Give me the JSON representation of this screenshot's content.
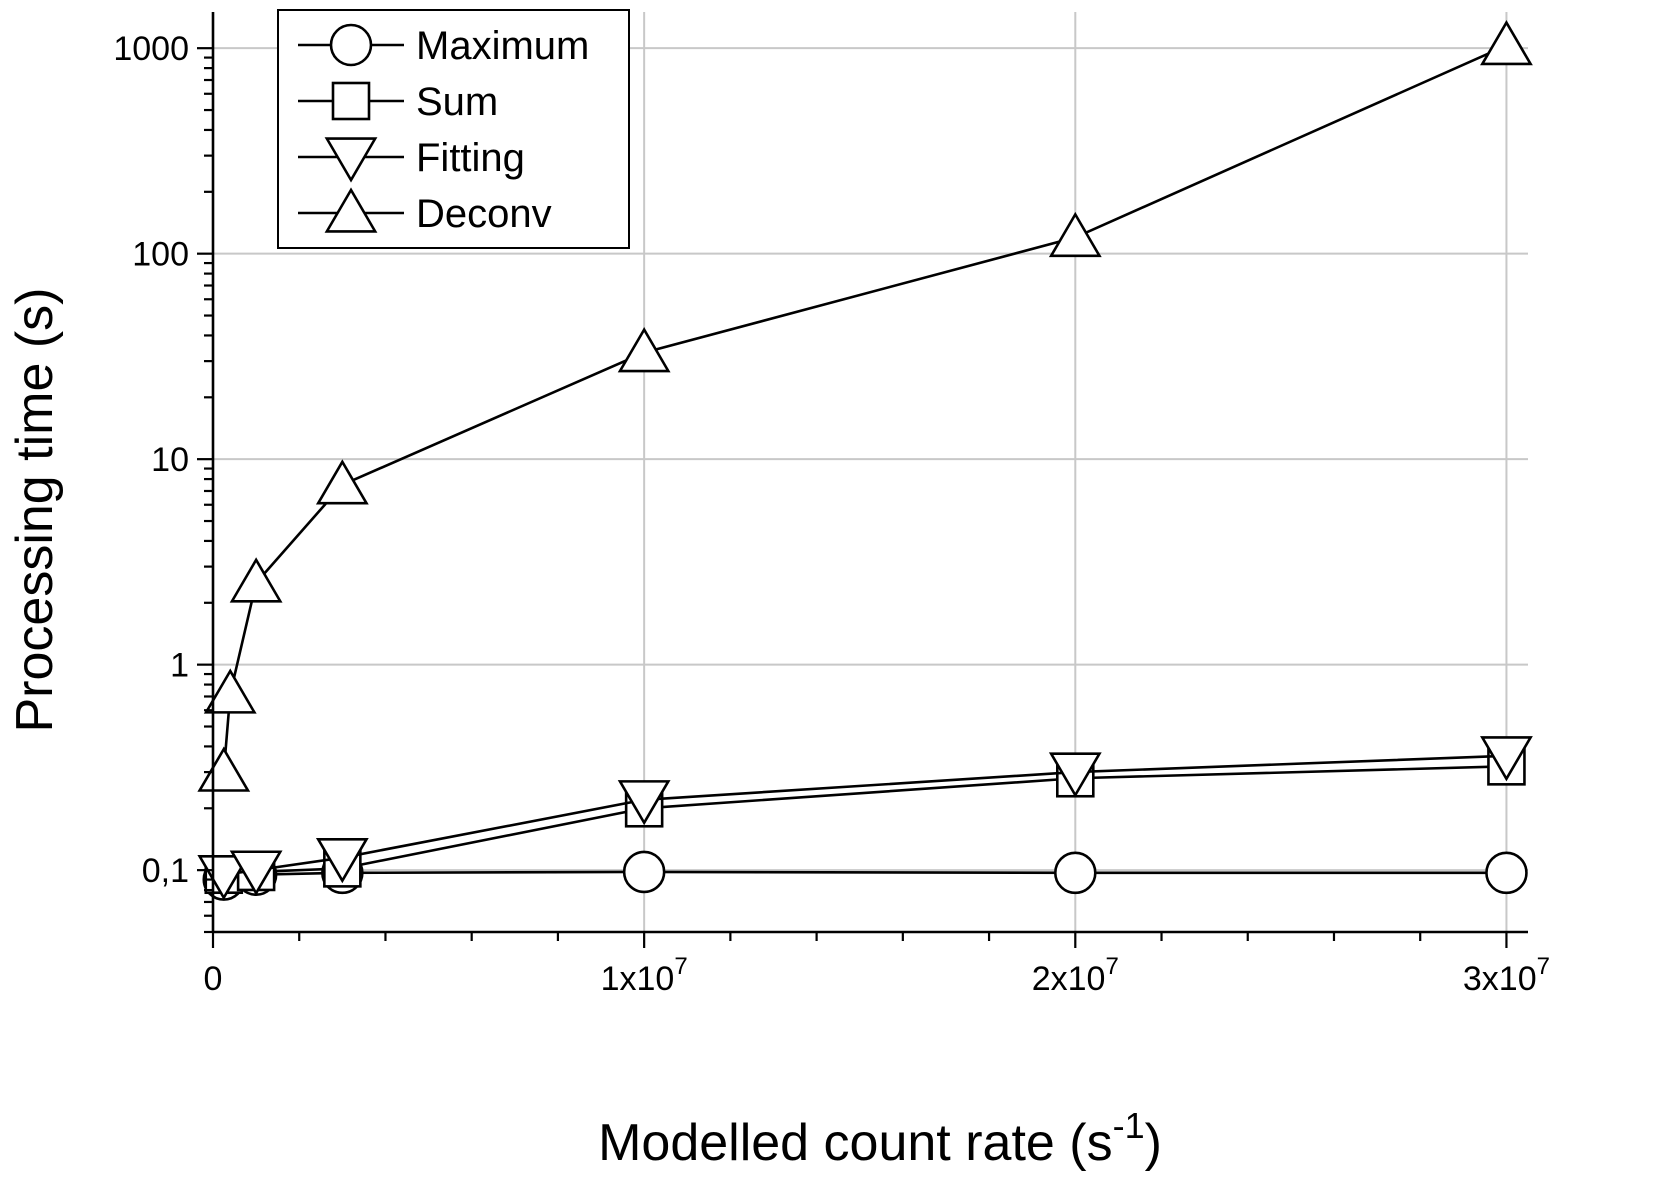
{
  "chart_data": {
    "type": "line",
    "title": "",
    "xlabel": "Modelled count rate (s",
    "xlabel_sup": "-1",
    "xlabel_close": ")",
    "ylabel": "Processing time (s)",
    "x_scale": "linear",
    "y_scale": "log",
    "xlim": [
      0,
      30500000
    ],
    "ylim": [
      0.05,
      1500
    ],
    "grid": true,
    "legend_position": "top-left",
    "x_ticks": [
      {
        "value": 0,
        "label": "0"
      },
      {
        "value": 10000000,
        "label": "1x10",
        "exp": "7"
      },
      {
        "value": 20000000,
        "label": "2x10",
        "exp": "7"
      },
      {
        "value": 30000000,
        "label": "3x10",
        "exp": "7"
      }
    ],
    "y_ticks": [
      {
        "value": 0.1,
        "label": "0,1"
      },
      {
        "value": 1,
        "label": "1"
      },
      {
        "value": 10,
        "label": "10"
      },
      {
        "value": 100,
        "label": "100"
      },
      {
        "value": 1000,
        "label": "1000"
      }
    ],
    "series": [
      {
        "name": "Maximum",
        "marker": "circle",
        "points": [
          [
            250000,
            0.09
          ],
          [
            1000000,
            0.095
          ],
          [
            3000000,
            0.097
          ],
          [
            10000000,
            0.098
          ],
          [
            20000000,
            0.097
          ],
          [
            30000000,
            0.097
          ]
        ]
      },
      {
        "name": "Sum",
        "marker": "square",
        "points": [
          [
            250000,
            0.095
          ],
          [
            1000000,
            0.098
          ],
          [
            3000000,
            0.102
          ],
          [
            10000000,
            0.2
          ],
          [
            20000000,
            0.28
          ],
          [
            30000000,
            0.32
          ]
        ]
      },
      {
        "name": "Fitting",
        "marker": "triangle-down",
        "points": [
          [
            250000,
            0.095
          ],
          [
            1000000,
            0.1
          ],
          [
            3000000,
            0.115
          ],
          [
            10000000,
            0.22
          ],
          [
            20000000,
            0.3
          ],
          [
            30000000,
            0.36
          ]
        ]
      },
      {
        "name": "Deconv",
        "marker": "triangle-up",
        "points": [
          [
            250000,
            0.3
          ],
          [
            400000,
            0.72
          ],
          [
            1000000,
            2.5
          ],
          [
            3000000,
            7.5
          ],
          [
            10000000,
            33
          ],
          [
            20000000,
            120
          ],
          [
            30000000,
            1030
          ]
        ]
      }
    ]
  }
}
